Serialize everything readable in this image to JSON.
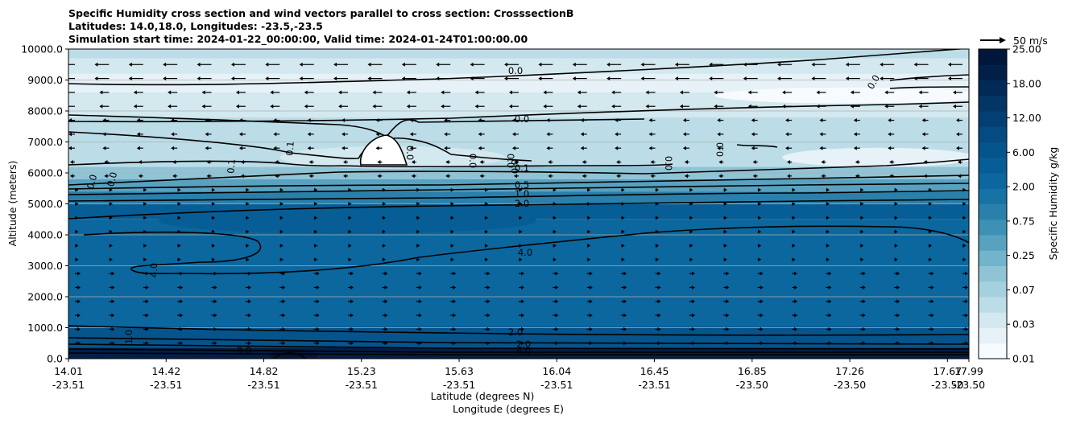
{
  "chart_data": {
    "type": "contour",
    "title_lines": [
      "Specific Humidity cross section and wind vectors parallel to cross section: CrosssectionB",
      "Latitudes: 14.0,18.0, Longitudes: -23.5,-23.5",
      "Simulation start time: 2024-01-22_00:00:00, Valid time: 2024-01-24T01:00:00.00"
    ],
    "ylabel": "Altitude (meters)",
    "xlabel_lines": [
      "Latitude (degrees N)",
      "Longitude (degrees E)"
    ],
    "ylim": [
      0,
      10000
    ],
    "y_ticks": [
      "0.0",
      "1000.0",
      "2000.0",
      "3000.0",
      "4000.0",
      "5000.0",
      "6000.0",
      "7000.0",
      "8000.0",
      "9000.0",
      "10000.0"
    ],
    "x_ticks": [
      {
        "lat": "14.01",
        "lon": "-23.51"
      },
      {
        "lat": "14.42",
        "lon": "-23.51"
      },
      {
        "lat": "14.82",
        "lon": "-23.51"
      },
      {
        "lat": "15.23",
        "lon": "-23.51"
      },
      {
        "lat": "15.63",
        "lon": "-23.51"
      },
      {
        "lat": "16.04",
        "lon": "-23.51"
      },
      {
        "lat": "16.45",
        "lon": "-23.51"
      },
      {
        "lat": "16.85",
        "lon": "-23.50"
      },
      {
        "lat": "17.26",
        "lon": "-23.50"
      },
      {
        "lat": "17.67",
        "lon": "-23.50"
      },
      {
        "lat": "17.99",
        "lon": "-23.50"
      }
    ],
    "grid": "horizontal",
    "colorbar": {
      "label": "Specific Humidity g/kg",
      "tick_labels": [
        "0.01",
        "0.03",
        "0.07",
        "0.25",
        "0.75",
        "2.00",
        "6.00",
        "12.00",
        "18.00",
        "25.00"
      ],
      "colors": [
        "#f7fbff",
        "#e6f2f7",
        "#d3e8ef",
        "#bcdde8",
        "#a5d1df",
        "#8ec4d6",
        "#72b4cb",
        "#58a2c0",
        "#3f90b5",
        "#2a80ab",
        "#1673a4",
        "#0b679e",
        "#075e96",
        "#06548c",
        "#054a80",
        "#043f73",
        "#033565",
        "#022a56",
        "#021f48",
        "#01163b"
      ]
    },
    "quiver_key": {
      "label": "50 m/s",
      "value": 50
    },
    "contour_labels": [
      "0.0",
      "0.0",
      "0.0",
      "0.0",
      "0.0",
      "0.0",
      "0.0",
      "0.0",
      "0.0",
      "0.0",
      "0.0",
      "0.1",
      "0.1",
      "0.1",
      "0.5",
      "1.0",
      "2.0",
      "4.0",
      "4.0",
      "2.0",
      "1.0",
      "8.0",
      "2.0",
      "4.0"
    ]
  }
}
